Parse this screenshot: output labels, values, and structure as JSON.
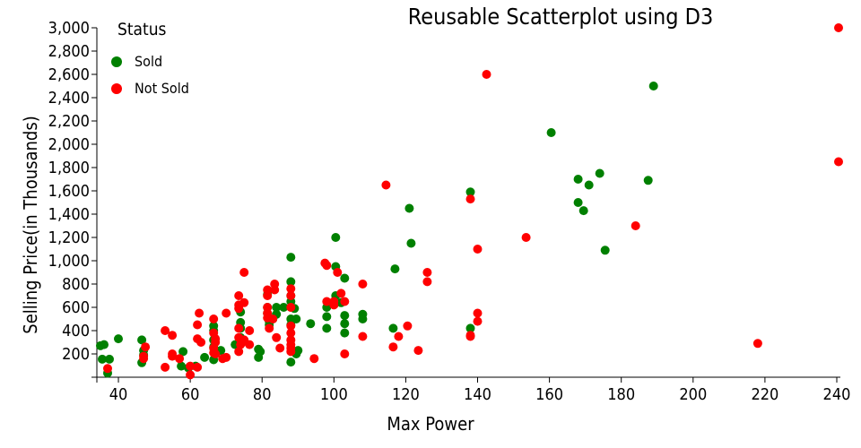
{
  "chart_data": {
    "type": "scatter",
    "title": "Reusable Scatterplot using D3",
    "xlabel": "Max Power",
    "ylabel": "Selling Price(in Thousands)",
    "xlim": [
      34,
      241
    ],
    "ylim": [
      0,
      3000
    ],
    "x_ticks": [
      40,
      60,
      80,
      100,
      120,
      140,
      160,
      180,
      200,
      220,
      240
    ],
    "y_ticks": [
      200,
      400,
      600,
      800,
      1000,
      1200,
      1400,
      1600,
      1800,
      2000,
      2200,
      2400,
      2600,
      2800,
      3000
    ],
    "legend": {
      "title": "Status",
      "position": "top-left"
    },
    "colors": {
      "Sold": "#008000",
      "Not Sold": "#ff0000"
    },
    "series": [
      {
        "name": "Sold",
        "points": [
          [
            35,
            270
          ],
          [
            36,
            280
          ],
          [
            35.5,
            155
          ],
          [
            37.5,
            155
          ],
          [
            37,
            35
          ],
          [
            40,
            330
          ],
          [
            46.5,
            320
          ],
          [
            46.5,
            125
          ],
          [
            47,
            190
          ],
          [
            47,
            230
          ],
          [
            58,
            220
          ],
          [
            57.5,
            95
          ],
          [
            59.5,
            80
          ],
          [
            61.5,
            95
          ],
          [
            64,
            170
          ],
          [
            66.5,
            260
          ],
          [
            66.5,
            400
          ],
          [
            66.5,
            440
          ],
          [
            66.5,
            320
          ],
          [
            66.5,
            150
          ],
          [
            68.5,
            230
          ],
          [
            72.5,
            280
          ],
          [
            74,
            560
          ],
          [
            74,
            470
          ],
          [
            74,
            420
          ],
          [
            74,
            340
          ],
          [
            74,
            310
          ],
          [
            79,
            170
          ],
          [
            79,
            240
          ],
          [
            79.5,
            220
          ],
          [
            81.5,
            710
          ],
          [
            81.5,
            600
          ],
          [
            81.5,
            550
          ],
          [
            82,
            480
          ],
          [
            82,
            450
          ],
          [
            83,
            500
          ],
          [
            84,
            600
          ],
          [
            84,
            540
          ],
          [
            86,
            600
          ],
          [
            88,
            1030
          ],
          [
            88,
            820
          ],
          [
            88,
            700
          ],
          [
            88,
            650
          ],
          [
            88,
            600
          ],
          [
            88,
            500
          ],
          [
            88,
            450
          ],
          [
            88,
            130
          ],
          [
            89,
            590
          ],
          [
            89.5,
            500
          ],
          [
            89.5,
            200
          ],
          [
            90,
            230
          ],
          [
            93.5,
            460
          ],
          [
            98,
            600
          ],
          [
            98,
            520
          ],
          [
            98,
            420
          ],
          [
            100.5,
            1200
          ],
          [
            100.5,
            950
          ],
          [
            100.5,
            700
          ],
          [
            102,
            640
          ],
          [
            103,
            850
          ],
          [
            103,
            530
          ],
          [
            103,
            380
          ],
          [
            103,
            460
          ],
          [
            108,
            540
          ],
          [
            108,
            500
          ],
          [
            116.5,
            420
          ],
          [
            117,
            930
          ],
          [
            121,
            1450
          ],
          [
            121.5,
            1150
          ],
          [
            138,
            1590
          ],
          [
            138,
            420
          ],
          [
            160.5,
            2100
          ],
          [
            168,
            1700
          ],
          [
            168,
            1500
          ],
          [
            169.5,
            1430
          ],
          [
            171,
            1650
          ],
          [
            174,
            1750
          ],
          [
            175.5,
            1090
          ],
          [
            187.5,
            1690
          ],
          [
            189,
            2500
          ]
        ]
      },
      {
        "name": "Not Sold",
        "points": [
          [
            37,
            75
          ],
          [
            47,
            180
          ],
          [
            47,
            160
          ],
          [
            47.5,
            260
          ],
          [
            53,
            400
          ],
          [
            53,
            85
          ],
          [
            55,
            360
          ],
          [
            55,
            200
          ],
          [
            55,
            180
          ],
          [
            57,
            160
          ],
          [
            60,
            20
          ],
          [
            60,
            95
          ],
          [
            62,
            450
          ],
          [
            62,
            330
          ],
          [
            62,
            85
          ],
          [
            62.5,
            550
          ],
          [
            63,
            300
          ],
          [
            66.5,
            500
          ],
          [
            66.5,
            380
          ],
          [
            66.5,
            250
          ],
          [
            66.5,
            210
          ],
          [
            67,
            330
          ],
          [
            67,
            300
          ],
          [
            67,
            200
          ],
          [
            69,
            160
          ],
          [
            70,
            170
          ],
          [
            70,
            550
          ],
          [
            73.5,
            700
          ],
          [
            73.5,
            620
          ],
          [
            73.5,
            590
          ],
          [
            73.5,
            420
          ],
          [
            73.5,
            340
          ],
          [
            73.5,
            220
          ],
          [
            74,
            280
          ],
          [
            74.5,
            300
          ],
          [
            75,
            900
          ],
          [
            75,
            640
          ],
          [
            75,
            320
          ],
          [
            76.5,
            400
          ],
          [
            76.5,
            280
          ],
          [
            81.5,
            750
          ],
          [
            81.5,
            700
          ],
          [
            81.5,
            600
          ],
          [
            81.5,
            550
          ],
          [
            81.5,
            510
          ],
          [
            82,
            420
          ],
          [
            83,
            500
          ],
          [
            83.5,
            800
          ],
          [
            83.5,
            750
          ],
          [
            84,
            340
          ],
          [
            85,
            250
          ],
          [
            88,
            760
          ],
          [
            88,
            700
          ],
          [
            88,
            600
          ],
          [
            88,
            440
          ],
          [
            88,
            380
          ],
          [
            88,
            320
          ],
          [
            88,
            280
          ],
          [
            88,
            250
          ],
          [
            88,
            220
          ],
          [
            94.5,
            160
          ],
          [
            97.5,
            980
          ],
          [
            98,
            960
          ],
          [
            98,
            650
          ],
          [
            100,
            620
          ],
          [
            100,
            650
          ],
          [
            101,
            900
          ],
          [
            102,
            720
          ],
          [
            103,
            650
          ],
          [
            103,
            200
          ],
          [
            108,
            800
          ],
          [
            108,
            350
          ],
          [
            114.5,
            1650
          ],
          [
            116.5,
            260
          ],
          [
            118,
            350
          ],
          [
            120.5,
            440
          ],
          [
            123.5,
            230
          ],
          [
            126,
            900
          ],
          [
            126,
            820
          ],
          [
            138,
            1530
          ],
          [
            138,
            350
          ],
          [
            138,
            360
          ],
          [
            140,
            1100
          ],
          [
            140,
            550
          ],
          [
            140,
            480
          ],
          [
            142.5,
            2600
          ],
          [
            153.5,
            1200
          ],
          [
            184,
            1300
          ],
          [
            218,
            290
          ],
          [
            240.5,
            3000
          ],
          [
            240.5,
            1850
          ]
        ]
      }
    ]
  }
}
